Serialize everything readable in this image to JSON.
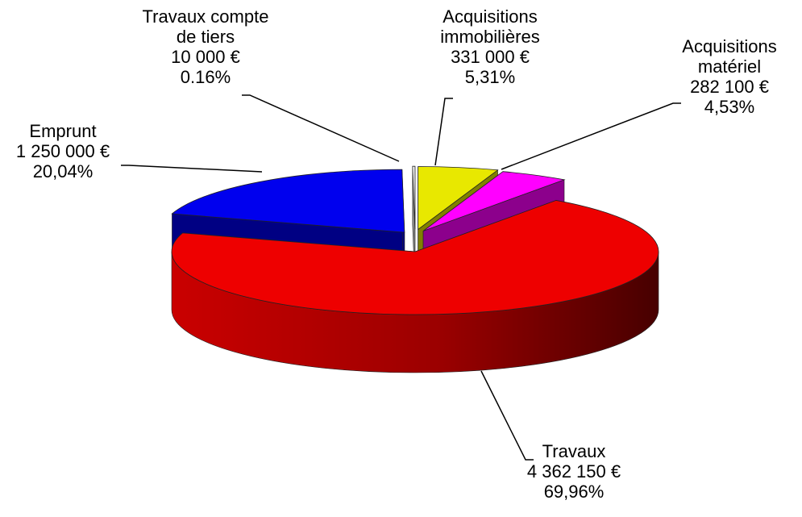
{
  "chart_data": {
    "type": "pie3d",
    "categories": [
      "Acquisitions immobilières",
      "Acquisitions matériel",
      "Travaux",
      "Emprunt",
      "Travaux compte de tiers"
    ],
    "values": [
      331000,
      282100,
      4362150,
      1250000,
      10000
    ],
    "value_labels": [
      "331 000 €",
      "282 100 €",
      "4 362 150 €",
      "1 250 000 €",
      "10 000 €"
    ],
    "percent_labels": [
      "5,31%",
      "4,53%",
      "69,96%",
      "20,04%",
      "0.16%"
    ],
    "colors": [
      "#e8e800",
      "#ff00ff",
      "#ee0000",
      "#0000ee",
      "#ffffff"
    ]
  }
}
